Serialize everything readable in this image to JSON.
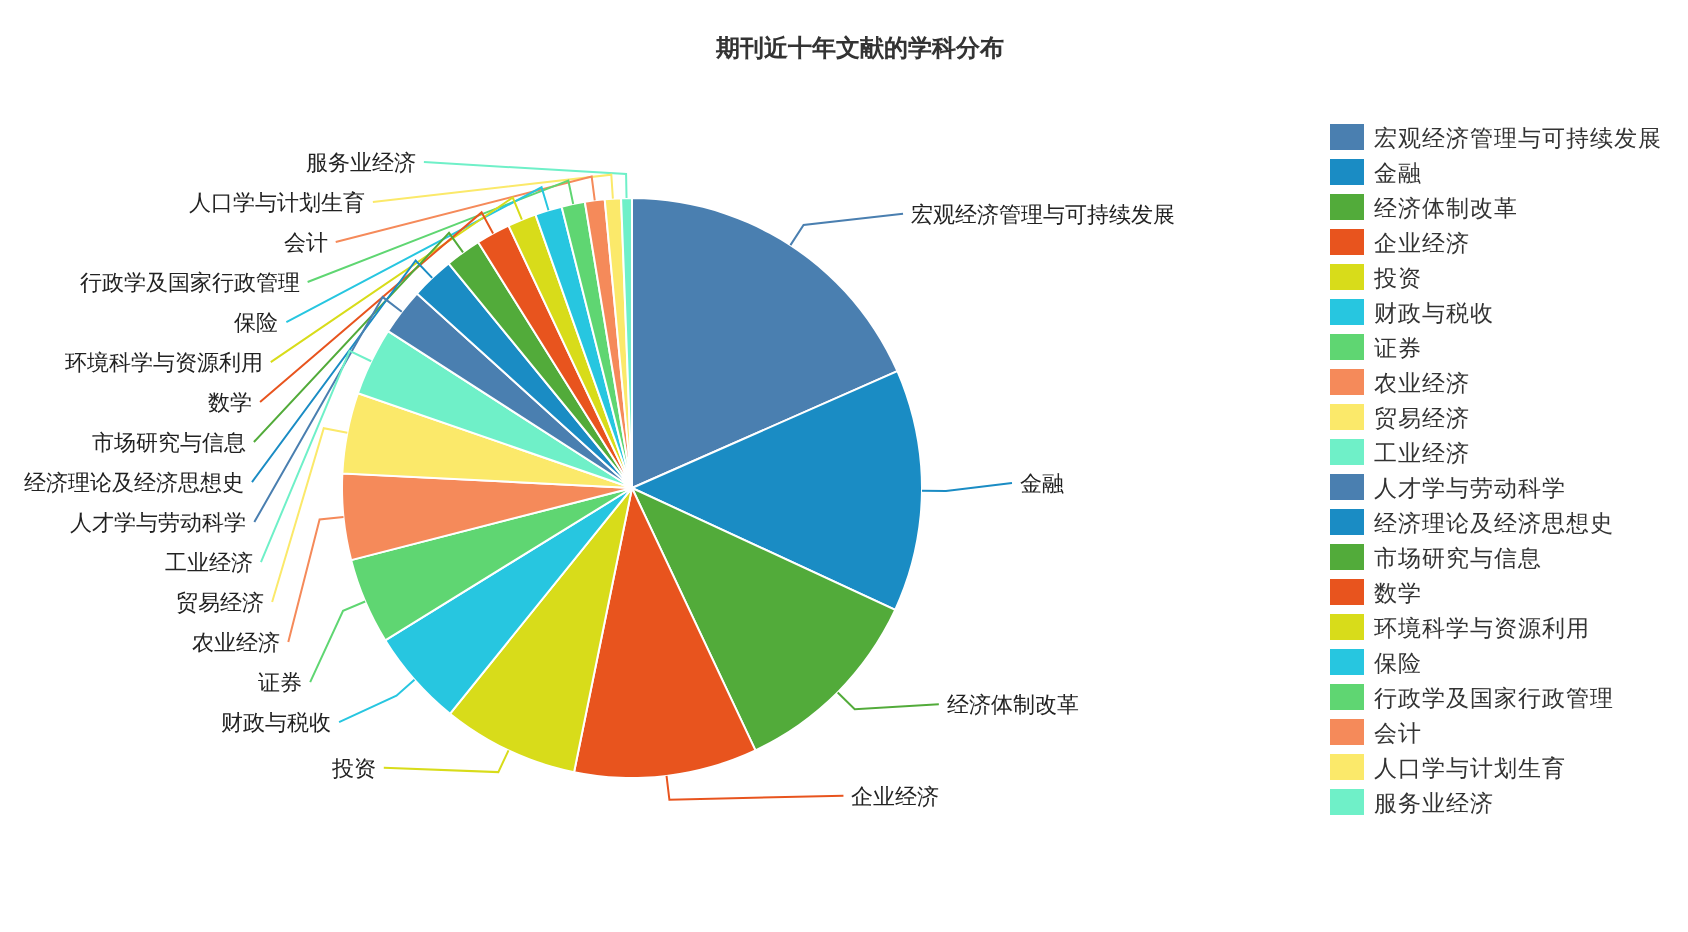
{
  "chart_data": {
    "type": "pie",
    "title": "期刊近十年文献的学科分布",
    "categories": [
      "宏观经济管理与可持续发展",
      "金融",
      "经济体制改革",
      "企业经济",
      "投资",
      "财政与税收",
      "证券",
      "农业经济",
      "贸易经济",
      "工业经济",
      "人才学与劳动科学",
      "经济理论及经济思想史",
      "市场研究与信息",
      "数学",
      "环境科学与资源利用",
      "保险",
      "行政学及国家行政管理",
      "会计",
      "人口学与计划生育",
      "服务业经济"
    ],
    "values": [
      18.4,
      13.5,
      11.1,
      10.2,
      7.6,
      5.4,
      4.8,
      4.8,
      4.5,
      3.8,
      2.6,
      2.4,
      2.0,
      1.9,
      1.6,
      1.5,
      1.3,
      1.1,
      0.9,
      0.6
    ],
    "colors": [
      "#4a7fb0",
      "#1a8cc4",
      "#52ab3a",
      "#e8541e",
      "#d8dc1a",
      "#27c6e0",
      "#5fd672",
      "#f58a5a",
      "#fbe96a",
      "#6ff0c8",
      "#4a7fb0",
      "#1a8cc4",
      "#52ab3a",
      "#e8541e",
      "#d8dc1a",
      "#27c6e0",
      "#5fd672",
      "#f58a5a",
      "#fbe96a",
      "#6ff0c8"
    ],
    "legend": "right"
  }
}
